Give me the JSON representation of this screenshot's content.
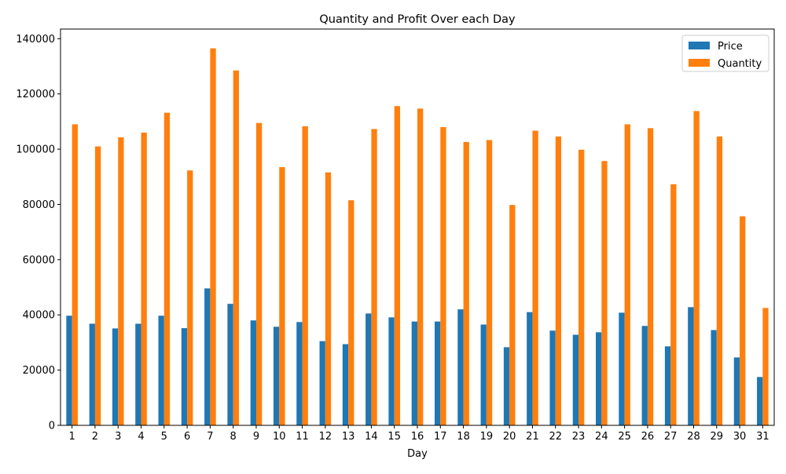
{
  "chart_data": {
    "type": "bar",
    "title": "Quantity and Profit Over each Day",
    "xlabel": "Day",
    "ylabel": "",
    "ylim": [
      0,
      143500
    ],
    "yticks": [
      0,
      20000,
      40000,
      60000,
      80000,
      100000,
      120000,
      140000
    ],
    "legend_position": "top-right",
    "grid": false,
    "categories": [
      "1",
      "2",
      "3",
      "4",
      "5",
      "6",
      "7",
      "8",
      "9",
      "10",
      "11",
      "12",
      "13",
      "14",
      "15",
      "16",
      "17",
      "18",
      "19",
      "20",
      "21",
      "22",
      "23",
      "24",
      "25",
      "26",
      "27",
      "28",
      "29",
      "30",
      "31"
    ],
    "series": [
      {
        "name": "Price",
        "color": "#1f77b4",
        "values": [
          39700,
          36800,
          35100,
          36800,
          39700,
          35200,
          49600,
          44000,
          38000,
          35700,
          37400,
          30500,
          29400,
          40500,
          39100,
          37600,
          37600,
          42000,
          36500,
          28300,
          41000,
          34300,
          32800,
          33700,
          40800,
          36000,
          28600,
          42800,
          34500,
          24600,
          17500
        ]
      },
      {
        "name": "Quantity",
        "color": "#ff7f0e",
        "values": [
          109000,
          101000,
          104300,
          106000,
          113200,
          92300,
          136500,
          128500,
          109500,
          93500,
          108300,
          91600,
          81500,
          107300,
          115600,
          114700,
          108000,
          102600,
          103300,
          79800,
          106700,
          104600,
          99800,
          95700,
          109000,
          107600,
          87300,
          113800,
          104600,
          75700,
          42500
        ]
      }
    ]
  }
}
